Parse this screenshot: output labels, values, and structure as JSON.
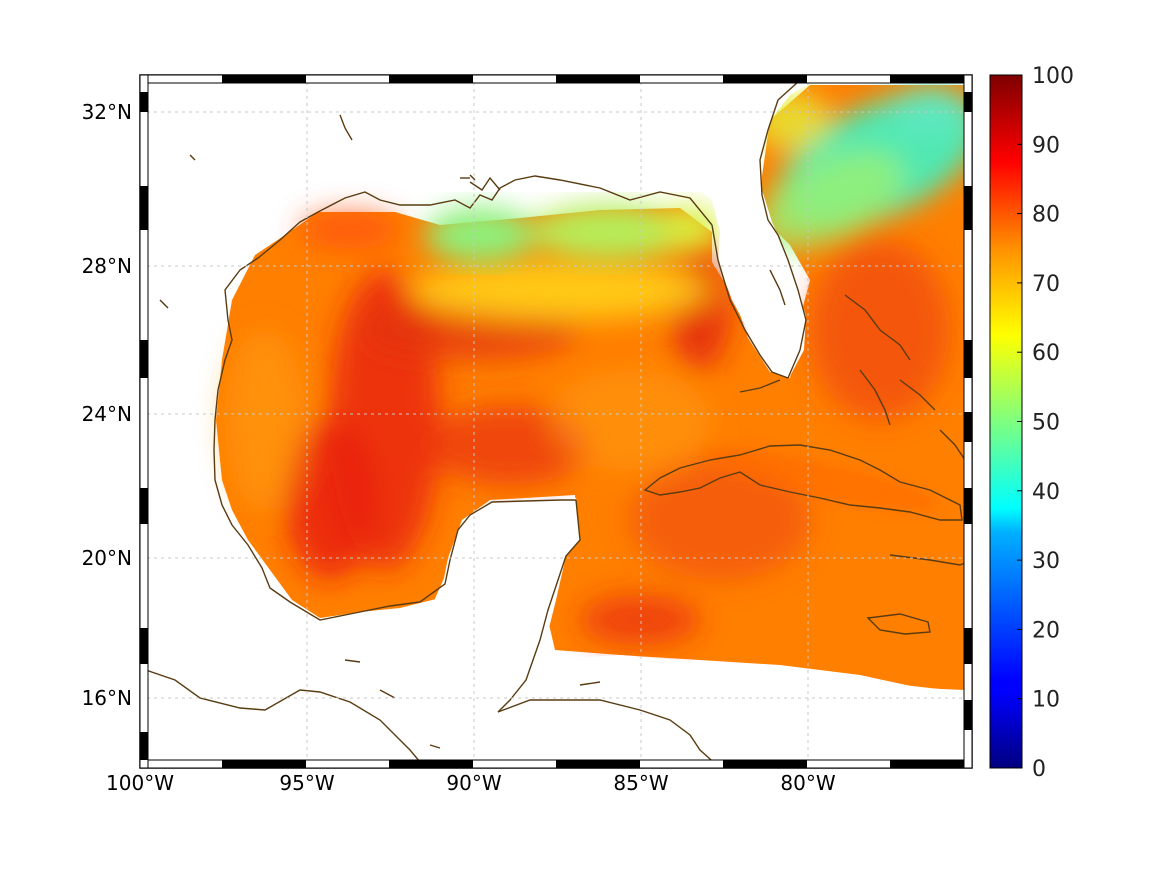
{
  "map": {
    "x_ticks": [
      "100°W",
      "95°W",
      "90°W",
      "85°W",
      "80°W"
    ],
    "y_ticks": [
      "32°N",
      "28°N",
      "24°N",
      "20°N",
      "16°N"
    ]
  },
  "colorbar": {
    "ticks": [
      "100",
      "90",
      "80",
      "70",
      "60",
      "50",
      "40",
      "30",
      "20",
      "10",
      "0"
    ],
    "range": [
      0,
      100
    ]
  },
  "colors": {
    "coastline": "#5a3c12",
    "land": "#ffffff",
    "gulf_dominant": "#ff7a00",
    "north_shelf": "#9be86b",
    "atlantic_shelf": "#52e8b8"
  }
}
